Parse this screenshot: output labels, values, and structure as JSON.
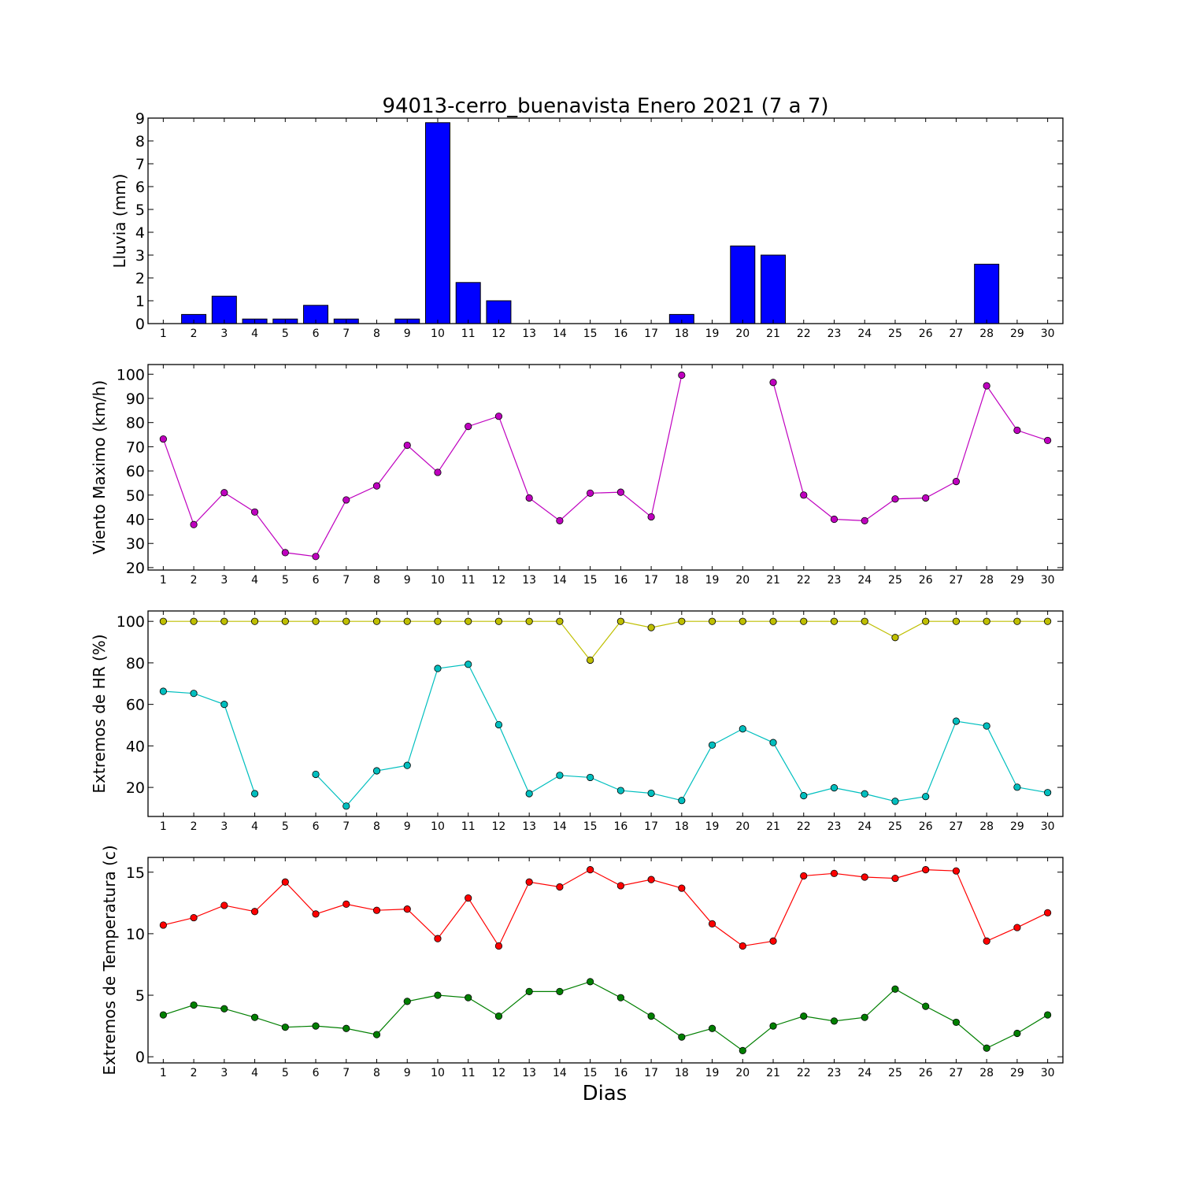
{
  "figure": {
    "title": "94013-cerro_buenavista Enero 2021  (7 a 7)",
    "xlabel": "Dias"
  },
  "chart_data": [
    {
      "type": "bar",
      "ylabel": "Lluvia (mm)",
      "categories": [
        "1",
        "2",
        "3",
        "4",
        "5",
        "6",
        "7",
        "8",
        "9",
        "10",
        "11",
        "12",
        "13",
        "14",
        "15",
        "16",
        "17",
        "18",
        "19",
        "20",
        "21",
        "22",
        "23",
        "24",
        "25",
        "26",
        "27",
        "28",
        "29",
        "30"
      ],
      "values": [
        0,
        0.4,
        1.2,
        0.2,
        0.2,
        0.8,
        0.2,
        0,
        0.2,
        8.8,
        1.8,
        1.0,
        0,
        0,
        0,
        0,
        0,
        0.4,
        0,
        3.4,
        3.0,
        0,
        0,
        0,
        0,
        0,
        0,
        2.6,
        0,
        0
      ],
      "ylim": [
        0,
        9
      ],
      "yticks": [
        0,
        1,
        2,
        3,
        4,
        5,
        6,
        7,
        8,
        9
      ],
      "color": "#0000ff"
    },
    {
      "type": "line",
      "ylabel": "Viento Maximo (km/h)",
      "x": [
        1,
        2,
        3,
        4,
        5,
        6,
        7,
        8,
        9,
        10,
        11,
        12,
        13,
        14,
        15,
        16,
        17,
        18,
        19,
        20,
        21,
        22,
        23,
        24,
        25,
        26,
        27,
        28,
        29,
        30
      ],
      "series": [
        {
          "values": [
            73.2,
            37.8,
            51,
            43,
            26.2,
            24.6,
            48,
            53.8,
            70.6,
            59.4,
            78.4,
            82.6,
            48.8,
            39.4,
            50.8,
            51.2,
            41,
            99.6,
            null,
            null,
            96.6,
            50,
            40,
            39.4,
            48.4,
            48.8,
            55.6,
            95.2,
            76.8,
            72.6
          ],
          "color": "#bf00bf"
        }
      ],
      "ylim": [
        19,
        104
      ],
      "yticks": [
        20,
        30,
        40,
        50,
        60,
        70,
        80,
        90,
        100
      ]
    },
    {
      "type": "line",
      "ylabel": "Extremos de HR (%)",
      "x": [
        1,
        2,
        3,
        4,
        5,
        6,
        7,
        8,
        9,
        10,
        11,
        12,
        13,
        14,
        15,
        16,
        17,
        18,
        19,
        20,
        21,
        22,
        23,
        24,
        25,
        26,
        27,
        28,
        29,
        30
      ],
      "series": [
        {
          "values": [
            100,
            100,
            100,
            100,
            100,
            100,
            100,
            100,
            100,
            100,
            100,
            100,
            100,
            100,
            81.3,
            100,
            97,
            100,
            100,
            100,
            100,
            100,
            100,
            100,
            92.2,
            100,
            100,
            100,
            100,
            100
          ],
          "color": "#bfbf00"
        },
        {
          "values": [
            66.3,
            65.3,
            60,
            17,
            null,
            26.3,
            11,
            28,
            30.6,
            77.3,
            79.3,
            50.2,
            17,
            25.8,
            24.8,
            18.5,
            17.2,
            13.7,
            40.4,
            48.2,
            41.6,
            16,
            19.8,
            16.9,
            13.3,
            15.6,
            51.9,
            49.6,
            20.1,
            17.5
          ],
          "color": "#00bfbf"
        }
      ],
      "ylim": [
        6,
        105
      ],
      "yticks": [
        20,
        40,
        60,
        80,
        100
      ]
    },
    {
      "type": "line",
      "ylabel": "Extremos de Temperatura (c)",
      "x": [
        1,
        2,
        3,
        4,
        5,
        6,
        7,
        8,
        9,
        10,
        11,
        12,
        13,
        14,
        15,
        16,
        17,
        18,
        19,
        20,
        21,
        22,
        23,
        24,
        25,
        26,
        27,
        28,
        29,
        30
      ],
      "series": [
        {
          "values": [
            10.7,
            11.3,
            12.3,
            11.8,
            14.2,
            11.6,
            12.4,
            11.9,
            12,
            9.6,
            12.9,
            9,
            14.2,
            13.8,
            15.2,
            13.9,
            14.4,
            13.7,
            10.8,
            9,
            9.4,
            14.7,
            14.9,
            14.6,
            14.5,
            15.2,
            15.1,
            9.4,
            10.5,
            11.7
          ],
          "color": "#ff0000"
        },
        {
          "values": [
            3.4,
            4.2,
            3.9,
            3.2,
            2.4,
            2.5,
            2.3,
            1.8,
            4.5,
            5,
            4.8,
            3.3,
            5.3,
            5.3,
            6.1,
            4.8,
            3.3,
            1.6,
            2.3,
            0.5,
            2.5,
            3.3,
            2.9,
            3.2,
            5.5,
            4.1,
            2.8,
            0.7,
            1.9,
            3.4
          ],
          "color": "#007f00"
        }
      ],
      "ylim": [
        -0.5,
        16.2
      ],
      "yticks": [
        0,
        5,
        10,
        15
      ]
    }
  ]
}
